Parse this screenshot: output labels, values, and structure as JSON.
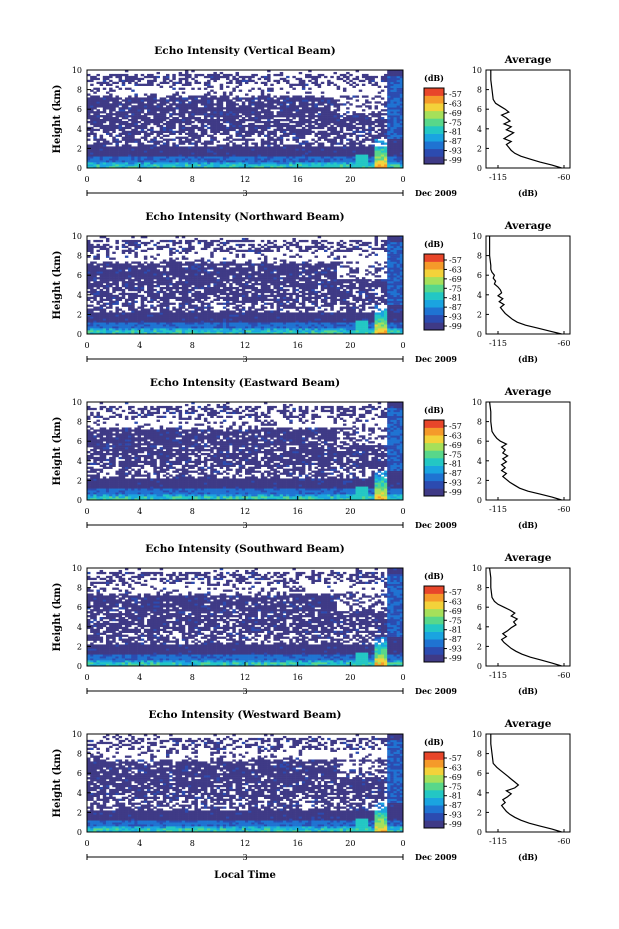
{
  "figure": {
    "xlabel": "Local Time",
    "date_label": "Dec 2009",
    "date_marker": "3",
    "ylabel": "Height (km)",
    "colorbar_unit": "(dB)",
    "avg_title": "Average",
    "avg_xlabel": "(dB)",
    "colormap": [
      "#3f3a86",
      "#2c4bb0",
      "#1f73d2",
      "#1aa4e0",
      "#23c7c4",
      "#58d78a",
      "#a6e05a",
      "#f3d23a",
      "#f59a2a",
      "#e8462a"
    ],
    "empty_color": "#ffffff"
  },
  "chart_data": [
    {
      "type": "heatmap",
      "title": "Echo Intensity (Vertical Beam)",
      "x_ticks": [
        "0",
        "4",
        "8",
        "12",
        "16",
        "20",
        "0"
      ],
      "y_ticks": [
        "0",
        "2",
        "4",
        "6",
        "8",
        "10"
      ],
      "xlim": [
        0,
        24
      ],
      "ylim": [
        0,
        10
      ],
      "colorbar_ticks": [
        "-57",
        "-63",
        "-69",
        "-75",
        "-81",
        "-87",
        "-93",
        "-99"
      ],
      "avg": {
        "x_ticks": [
          "-115",
          "-60"
        ],
        "y_ticks": [
          "0",
          "2",
          "4",
          "6",
          "8",
          "10"
        ],
        "xlim": [
          -125,
          -55
        ],
        "height_km": [
          0,
          0.3,
          0.6,
          0.9,
          1.2,
          1.5,
          1.8,
          2.1,
          2.4,
          2.7,
          3.0,
          3.3,
          3.6,
          3.9,
          4.2,
          4.5,
          4.8,
          5.1,
          5.4,
          5.7,
          6.0,
          6.3,
          6.6,
          7.0,
          8.0,
          9.0,
          10.0
        ],
        "db": [
          -62,
          -70,
          -80,
          -88,
          -96,
          -101,
          -104,
          -106,
          -108,
          -104,
          -110,
          -106,
          -102,
          -108,
          -104,
          -110,
          -105,
          -108,
          -112,
          -106,
          -109,
          -113,
          -117,
          -119,
          -120,
          -121,
          -121
        ]
      }
    },
    {
      "type": "heatmap",
      "title": "Echo Intensity (Northward Beam)",
      "x_ticks": [
        "0",
        "4",
        "8",
        "12",
        "16",
        "20",
        "0"
      ],
      "y_ticks": [
        "0",
        "2",
        "4",
        "6",
        "8",
        "10"
      ],
      "xlim": [
        0,
        24
      ],
      "ylim": [
        0,
        10
      ],
      "colorbar_ticks": [
        "-57",
        "-63",
        "-69",
        "-75",
        "-81",
        "-87",
        "-93",
        "-99"
      ],
      "avg": {
        "x_ticks": [
          "-115",
          "-60"
        ],
        "y_ticks": [
          "0",
          "2",
          "4",
          "6",
          "8",
          "10"
        ],
        "xlim": [
          -125,
          -55
        ],
        "height_km": [
          0,
          0.3,
          0.6,
          0.9,
          1.2,
          1.5,
          1.8,
          2.1,
          2.4,
          2.7,
          3.0,
          3.3,
          3.6,
          3.9,
          4.2,
          4.5,
          4.8,
          5.1,
          5.4,
          5.7,
          6.0,
          6.3,
          6.6,
          7.0,
          8.0,
          9.0,
          10.0
        ],
        "db": [
          -62,
          -72,
          -82,
          -92,
          -99,
          -103,
          -106,
          -109,
          -111,
          -113,
          -110,
          -114,
          -111,
          -115,
          -112,
          -113,
          -115,
          -118,
          -117,
          -119,
          -118,
          -120,
          -121,
          -121,
          -122,
          -122,
          -122
        ]
      }
    },
    {
      "type": "heatmap",
      "title": "Echo Intensity (Eastward Beam)",
      "x_ticks": [
        "0",
        "4",
        "8",
        "12",
        "16",
        "20",
        "0"
      ],
      "y_ticks": [
        "0",
        "2",
        "4",
        "6",
        "8",
        "10"
      ],
      "xlim": [
        0,
        24
      ],
      "ylim": [
        0,
        10
      ],
      "colorbar_ticks": [
        "-57",
        "-63",
        "-69",
        "-75",
        "-81",
        "-87",
        "-93",
        "-99"
      ],
      "avg": {
        "x_ticks": [
          "-115",
          "-60"
        ],
        "y_ticks": [
          "0",
          "2",
          "4",
          "6",
          "8",
          "10"
        ],
        "xlim": [
          -125,
          -55
        ],
        "height_km": [
          0,
          0.3,
          0.6,
          0.9,
          1.2,
          1.5,
          1.8,
          2.1,
          2.4,
          2.7,
          3.0,
          3.3,
          3.6,
          3.9,
          4.2,
          4.5,
          4.8,
          5.1,
          5.4,
          5.7,
          6.0,
          6.3,
          6.6,
          7.0,
          8.0,
          9.0,
          10.0
        ],
        "db": [
          -62,
          -70,
          -80,
          -90,
          -97,
          -101,
          -105,
          -108,
          -111,
          -108,
          -112,
          -109,
          -112,
          -108,
          -111,
          -107,
          -111,
          -109,
          -112,
          -108,
          -113,
          -116,
          -118,
          -120,
          -121,
          -121,
          -122
        ]
      }
    },
    {
      "type": "heatmap",
      "title": "Echo Intensity (Southward Beam)",
      "x_ticks": [
        "0",
        "4",
        "8",
        "12",
        "16",
        "20",
        "0"
      ],
      "y_ticks": [
        "0",
        "2",
        "4",
        "6",
        "8",
        "10"
      ],
      "xlim": [
        0,
        24
      ],
      "ylim": [
        0,
        10
      ],
      "colorbar_ticks": [
        "-57",
        "-63",
        "-69",
        "-75",
        "-81",
        "-87",
        "-93",
        "-99"
      ],
      "avg": {
        "x_ticks": [
          "-115",
          "-60"
        ],
        "y_ticks": [
          "0",
          "2",
          "4",
          "6",
          "8",
          "10"
        ],
        "xlim": [
          -125,
          -55
        ],
        "height_km": [
          0,
          0.3,
          0.6,
          0.9,
          1.2,
          1.5,
          1.8,
          2.1,
          2.4,
          2.7,
          3.0,
          3.3,
          3.6,
          3.9,
          4.2,
          4.5,
          4.8,
          5.1,
          5.4,
          5.7,
          6.0,
          6.3,
          6.6,
          7.0,
          8.0,
          9.0,
          10.0
        ],
        "db": [
          -62,
          -70,
          -79,
          -88,
          -95,
          -100,
          -104,
          -107,
          -110,
          -112,
          -108,
          -111,
          -107,
          -104,
          -100,
          -102,
          -99,
          -104,
          -101,
          -105,
          -110,
          -115,
          -118,
          -120,
          -121,
          -121,
          -122
        ]
      }
    },
    {
      "type": "heatmap",
      "title": "Echo Intensity (Westward Beam)",
      "x_ticks": [
        "0",
        "4",
        "8",
        "12",
        "16",
        "20",
        "0"
      ],
      "y_ticks": [
        "0",
        "2",
        "4",
        "6",
        "8",
        "10"
      ],
      "xlim": [
        0,
        24
      ],
      "ylim": [
        0,
        10
      ],
      "colorbar_ticks": [
        "-57",
        "-63",
        "-69",
        "-75",
        "-81",
        "-87",
        "-93",
        "-99"
      ],
      "avg": {
        "x_ticks": [
          "-115",
          "-60"
        ],
        "y_ticks": [
          "0",
          "2",
          "4",
          "6",
          "8",
          "10"
        ],
        "xlim": [
          -125,
          -55
        ],
        "height_km": [
          0,
          0.3,
          0.6,
          0.9,
          1.2,
          1.5,
          1.8,
          2.1,
          2.4,
          2.7,
          3.0,
          3.3,
          3.6,
          3.9,
          4.2,
          4.5,
          4.8,
          5.1,
          5.4,
          5.7,
          6.0,
          6.3,
          6.6,
          7.0,
          8.0,
          9.0,
          10.0
        ],
        "db": [
          -62,
          -70,
          -80,
          -89,
          -96,
          -101,
          -105,
          -108,
          -110,
          -112,
          -109,
          -111,
          -107,
          -104,
          -108,
          -101,
          -98,
          -101,
          -104,
          -107,
          -110,
          -113,
          -116,
          -119,
          -120,
          -121,
          -121
        ]
      }
    }
  ]
}
